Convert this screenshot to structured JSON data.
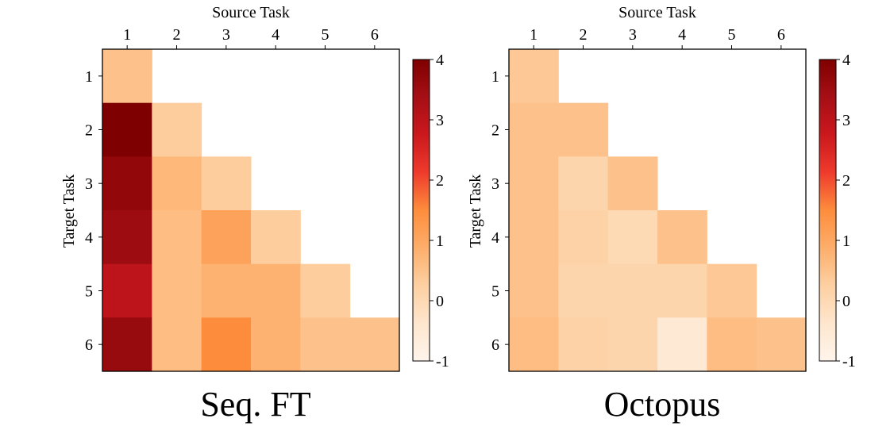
{
  "colors": {
    "colormap": [
      "#fff5eb",
      "#fee6ce",
      "#fdd0a2",
      "#fdae6b",
      "#fd8d3c",
      "#ef3b2c",
      "#cb181d",
      "#a50f15",
      "#7f0000"
    ],
    "axis": "#000000",
    "background": "#ffffff"
  },
  "chart_data": [
    {
      "type": "heatmap",
      "title": "Seq. FT",
      "xlabel": "Source Task",
      "ylabel": "Target Task",
      "x_categories": [
        "1",
        "2",
        "3",
        "4",
        "5",
        "6"
      ],
      "y_categories": [
        "1",
        "2",
        "3",
        "4",
        "5",
        "6"
      ],
      "x_axis_position": "top",
      "values": [
        [
          0.5,
          null,
          null,
          null,
          null,
          null
        ],
        [
          4.0,
          0.3,
          null,
          null,
          null,
          null
        ],
        [
          3.7,
          0.7,
          0.3,
          null,
          null,
          null
        ],
        [
          3.5,
          0.6,
          1.1,
          0.3,
          null,
          null
        ],
        [
          3.0,
          0.6,
          0.8,
          0.8,
          0.3,
          null
        ],
        [
          3.6,
          0.6,
          1.5,
          0.8,
          0.5,
          0.5
        ]
      ],
      "colorbar": {
        "min": -1,
        "max": 4,
        "ticks": [
          "-1",
          "0",
          "1",
          "2",
          "3",
          "4"
        ]
      }
    },
    {
      "type": "heatmap",
      "title": "Octopus",
      "xlabel": "Source Task",
      "ylabel": "Target Task",
      "x_categories": [
        "1",
        "2",
        "3",
        "4",
        "5",
        "6"
      ],
      "y_categories": [
        "1",
        "2",
        "3",
        "4",
        "5",
        "6"
      ],
      "x_axis_position": "top",
      "values": [
        [
          0.4,
          null,
          null,
          null,
          null,
          null
        ],
        [
          0.5,
          0.5,
          null,
          null,
          null,
          null
        ],
        [
          0.5,
          0.1,
          0.5,
          null,
          null,
          null
        ],
        [
          0.5,
          0.2,
          0.0,
          0.5,
          null,
          null
        ],
        [
          0.5,
          0.1,
          0.1,
          0.1,
          0.4,
          null
        ],
        [
          0.6,
          0.2,
          0.1,
          -0.5,
          0.6,
          0.5
        ]
      ],
      "colorbar": {
        "min": -1,
        "max": 4,
        "ticks": [
          "-1",
          "0",
          "1",
          "2",
          "3",
          "4"
        ]
      }
    }
  ]
}
